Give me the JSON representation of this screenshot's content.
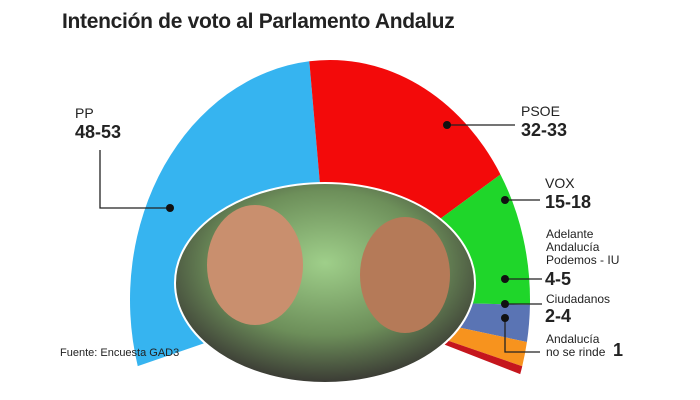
{
  "chart_data": {
    "type": "pie",
    "subtype": "hemicycle",
    "title": "Intención de voto al Parlamento Andaluz",
    "source": "Fuente: Encuesta GAD3",
    "unit": "seats",
    "series": [
      {
        "name": "PP",
        "range": "48-53",
        "value": 50.5,
        "color": "#36b4f0"
      },
      {
        "name": "PSOE",
        "range": "32-33",
        "value": 32.5,
        "color": "#f30a0a"
      },
      {
        "name": "VOX",
        "range": "15-18",
        "value": 16.5,
        "color": "#1fd62a"
      },
      {
        "name": "Adelante Andalucía Podemos - IU",
        "range": "4-5",
        "value": 4.5,
        "color": "#5a74b4"
      },
      {
        "name": "Ciudadanos",
        "range": "2-4",
        "value": 3,
        "color": "#f7931e"
      },
      {
        "name": "Andalucía no se rinde",
        "range": "1",
        "value": 1,
        "color": "#c5161d"
      }
    ]
  },
  "labels": {
    "pp": {
      "name": "PP",
      "value": "48-53"
    },
    "psoe": {
      "name": "PSOE",
      "value": "32-33"
    },
    "vox": {
      "name": "VOX",
      "value": "15-18"
    },
    "aa": {
      "name1": "Adelante",
      "name2": "Andalucía",
      "name3": "Podemos - IU",
      "value": "4-5"
    },
    "cs": {
      "name": "Ciudadanos",
      "value": "2-4"
    },
    "anr": {
      "name1": "Andalucía",
      "name2": "no se rinde",
      "value": "1"
    }
  }
}
